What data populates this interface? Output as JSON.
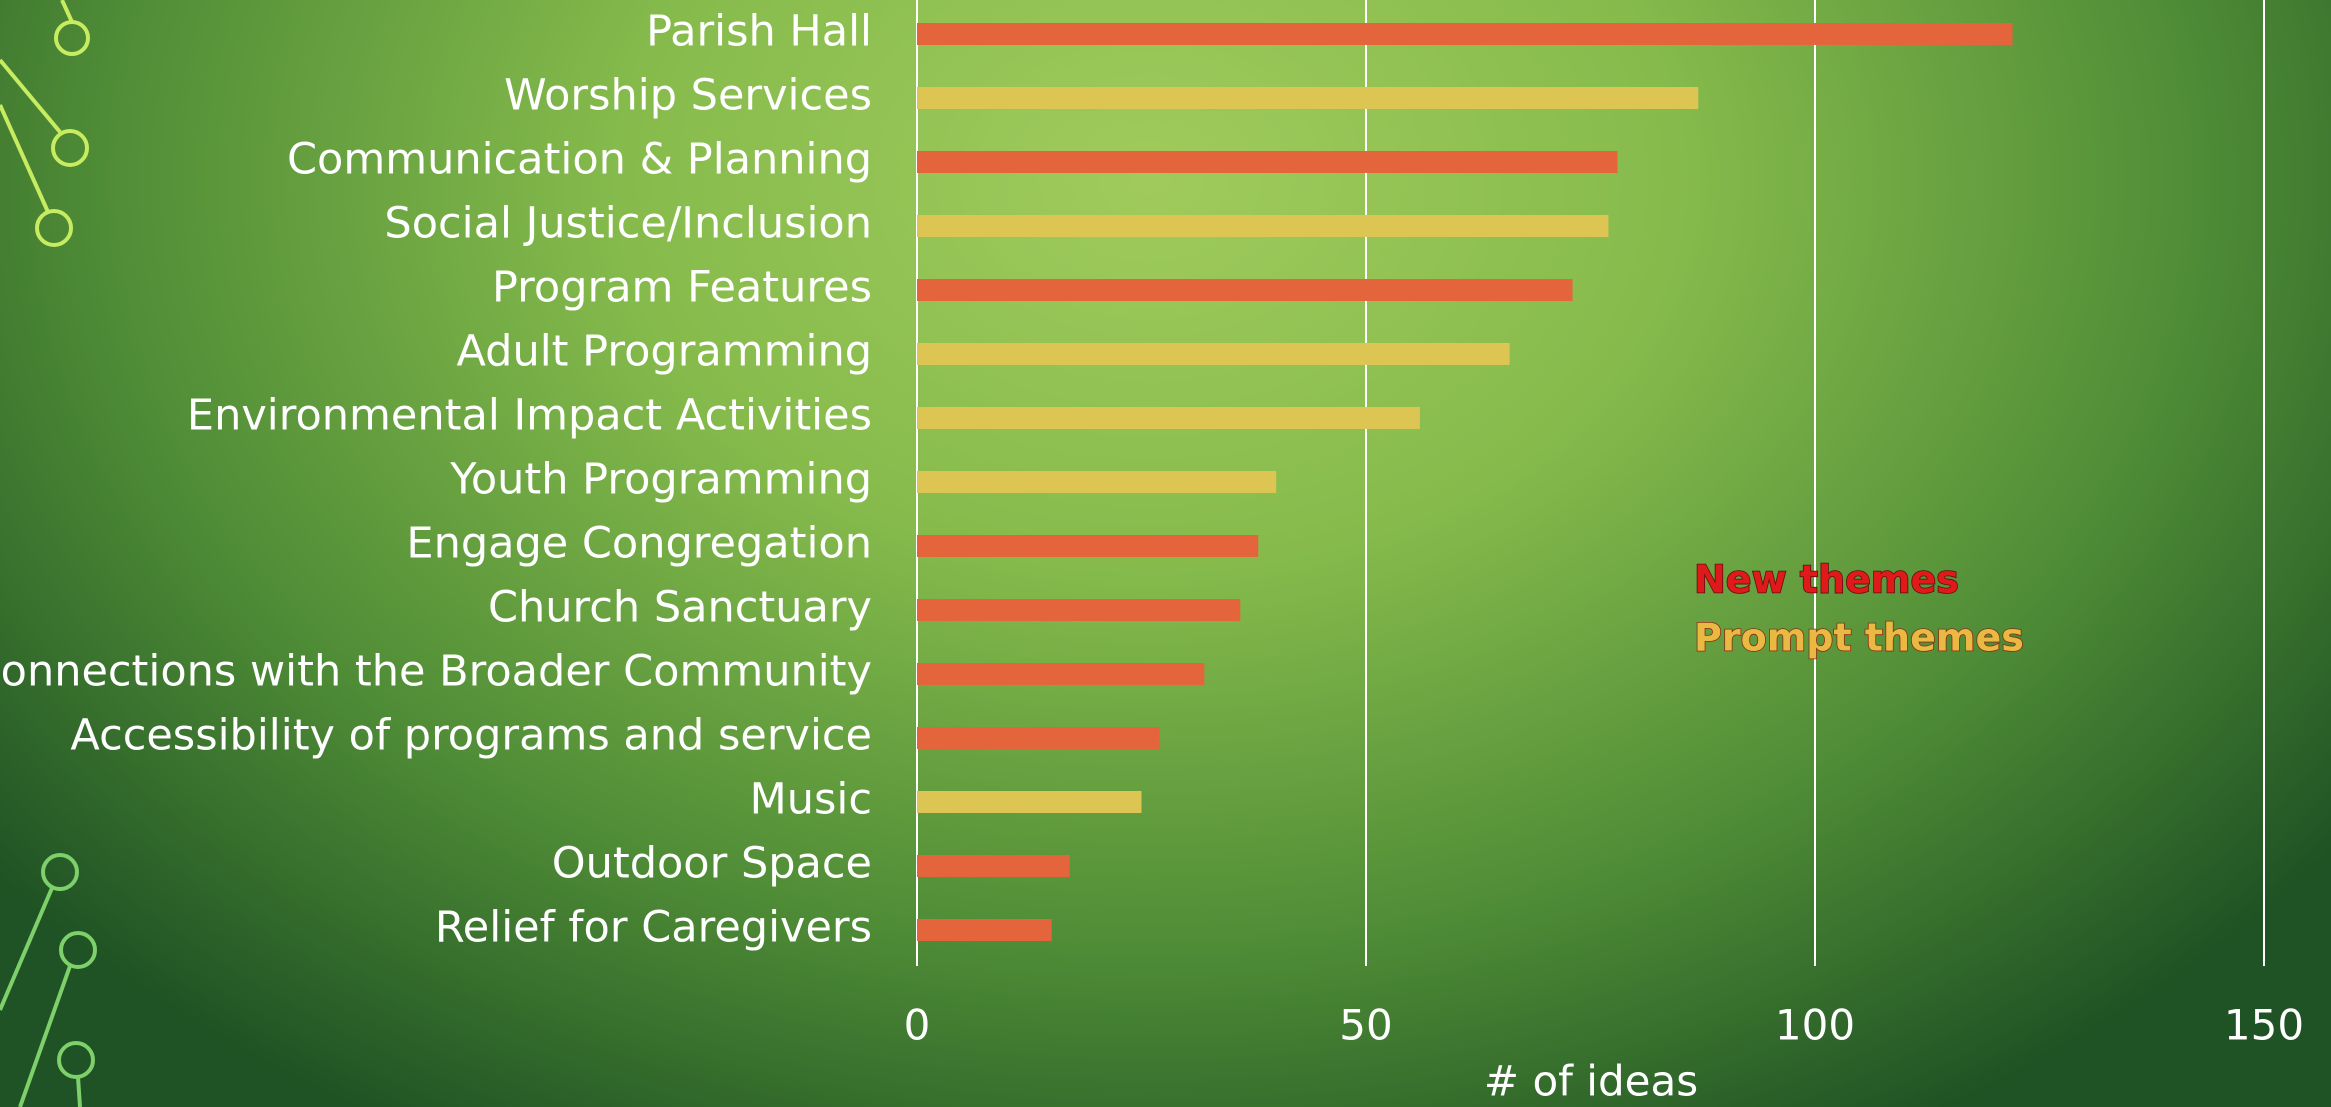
{
  "chart_data": {
    "type": "barh",
    "categories": [
      "Parish Hall",
      "Worship Services",
      "Communication & Planning",
      "Social Justice/Inclusion",
      "Program Features",
      "Adult Programming",
      "Environmental Impact Activities",
      "Youth Programming",
      "Engage Congregation",
      "Church Sanctuary",
      "Connections with the Broader Community",
      "Accessibility of programs and service",
      "Music",
      "Outdoor Space",
      "Relief for Caregivers"
    ],
    "series": [
      {
        "name": "New themes",
        "color": "#e4653c",
        "values": [
          122,
          null,
          78,
          null,
          73,
          null,
          null,
          null,
          38,
          36,
          32,
          27,
          null,
          17,
          15
        ]
      },
      {
        "name": "Prompt themes",
        "color": "#dcc553",
        "values": [
          null,
          87,
          null,
          77,
          null,
          66,
          56,
          40,
          null,
          null,
          null,
          null,
          25,
          null,
          null
        ]
      }
    ],
    "xlabel": "# of ideas",
    "xlim": [
      0,
      150
    ],
    "xticks": [
      0,
      50,
      100,
      150
    ],
    "grid": true
  }
}
